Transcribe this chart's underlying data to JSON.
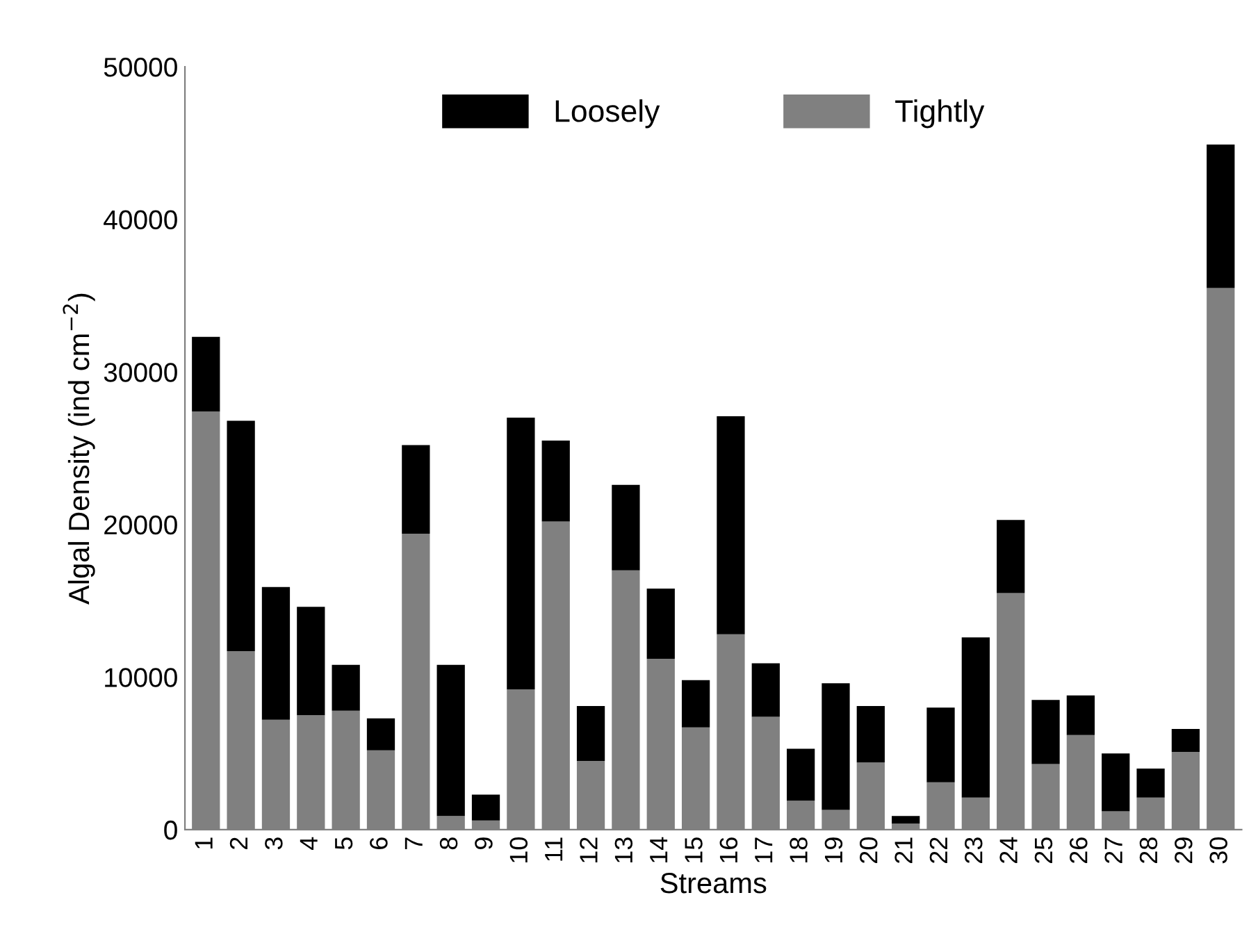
{
  "chart_data": {
    "type": "bar",
    "stacked": true,
    "xlabel": "Streams",
    "ylabel": "Algal Density (ind cm$^{−2}$)",
    "categories": [
      "1",
      "2",
      "3",
      "4",
      "5",
      "6",
      "7",
      "8",
      "9",
      "10",
      "11",
      "12",
      "13",
      "14",
      "15",
      "16",
      "17",
      "18",
      "19",
      "20",
      "21",
      "22",
      "23",
      "24",
      "25",
      "26",
      "27",
      "28",
      "29",
      "30"
    ],
    "series": [
      {
        "name": "Tightly",
        "color": "#808080",
        "values": [
          27400,
          11700,
          7200,
          7500,
          7800,
          5200,
          19400,
          900,
          600,
          9200,
          20200,
          4500,
          17000,
          11200,
          6700,
          12800,
          7400,
          1900,
          1300,
          4400,
          400,
          3100,
          2100,
          15500,
          4300,
          6200,
          1200,
          2100,
          5100,
          35500
        ]
      },
      {
        "name": "Loosely",
        "color": "#000000",
        "values": [
          4900,
          15100,
          8700,
          7100,
          3000,
          2100,
          5800,
          9900,
          1700,
          17800,
          5300,
          3600,
          5600,
          4600,
          3100,
          14300,
          3500,
          3400,
          8300,
          3700,
          500,
          4900,
          10500,
          4800,
          4200,
          2600,
          3800,
          1900,
          1500,
          9400
        ]
      }
    ],
    "ylim": [
      0,
      50000
    ],
    "yticks": [
      0,
      10000,
      20000,
      30000,
      40000,
      50000
    ],
    "grid": false,
    "legend": "top"
  }
}
